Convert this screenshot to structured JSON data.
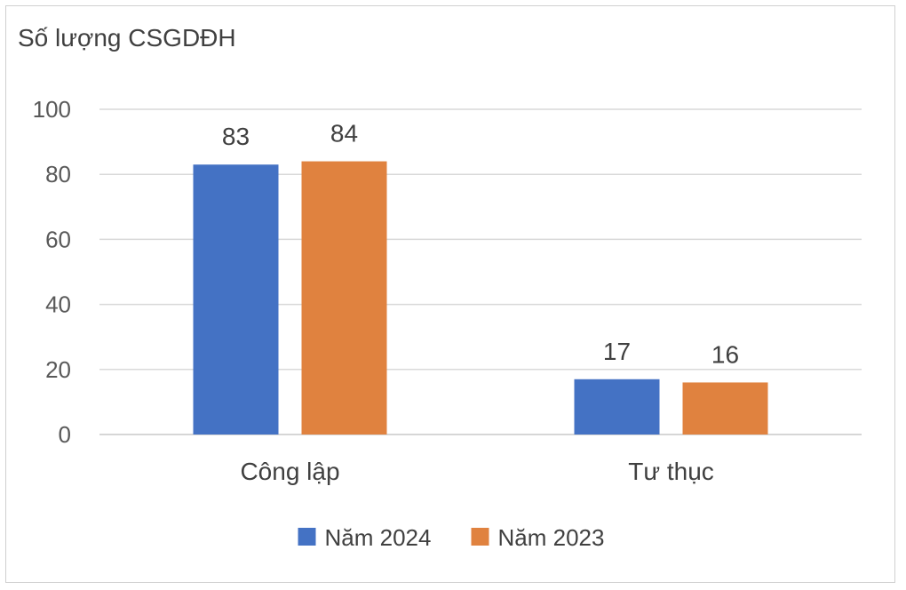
{
  "chart_data": {
    "type": "bar",
    "ylabel": "Số lượng CSGDĐH",
    "categories": [
      "Công lập",
      "Tư thục"
    ],
    "series": [
      {
        "name": "Năm 2024",
        "values": [
          83,
          17
        ],
        "color": "#4472C4"
      },
      {
        "name": "Năm 2023",
        "values": [
          84,
          16
        ],
        "color": "#E0823F"
      }
    ],
    "ylim": [
      0,
      100
    ],
    "yticks": [
      "0",
      "20",
      "40",
      "60",
      "80",
      "100"
    ],
    "data_labels": [
      [
        "83",
        "17"
      ],
      [
        "84",
        "16"
      ]
    ],
    "grid": true,
    "legend": "bottom"
  }
}
